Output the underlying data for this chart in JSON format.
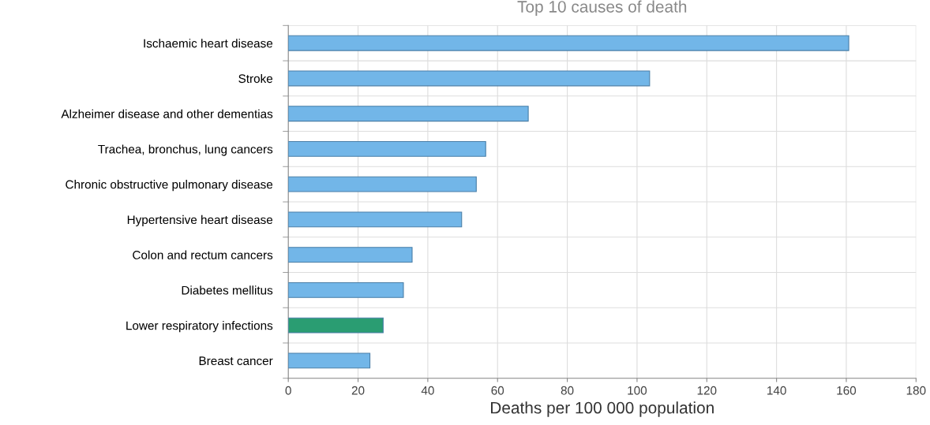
{
  "chart_data": {
    "type": "bar",
    "orientation": "horizontal",
    "title": "Top 10 causes of death",
    "xlabel": "Deaths per 100 000 population",
    "categories": [
      "Ischaemic heart disease",
      "Stroke",
      "Alzheimer disease and other dementias",
      "Trachea, bronchus, lung cancers",
      "Chronic obstructive pulmonary disease",
      "Hypertensive heart disease",
      "Colon and rectum cancers",
      "Diabetes mellitus",
      "Lower respiratory infections",
      "Breast cancer"
    ],
    "values": [
      160.7,
      103.6,
      68.8,
      56.6,
      53.9,
      49.7,
      35.5,
      33.0,
      27.2,
      23.4
    ],
    "colors": [
      "#72b6e8",
      "#72b6e8",
      "#72b6e8",
      "#72b6e8",
      "#72b6e8",
      "#72b6e8",
      "#72b6e8",
      "#72b6e8",
      "#2a9d72",
      "#72b6e8"
    ],
    "xlim": [
      0,
      180
    ],
    "xticks": [
      0,
      20,
      40,
      60,
      80,
      100,
      120,
      140,
      160,
      180
    ],
    "grid": true
  }
}
